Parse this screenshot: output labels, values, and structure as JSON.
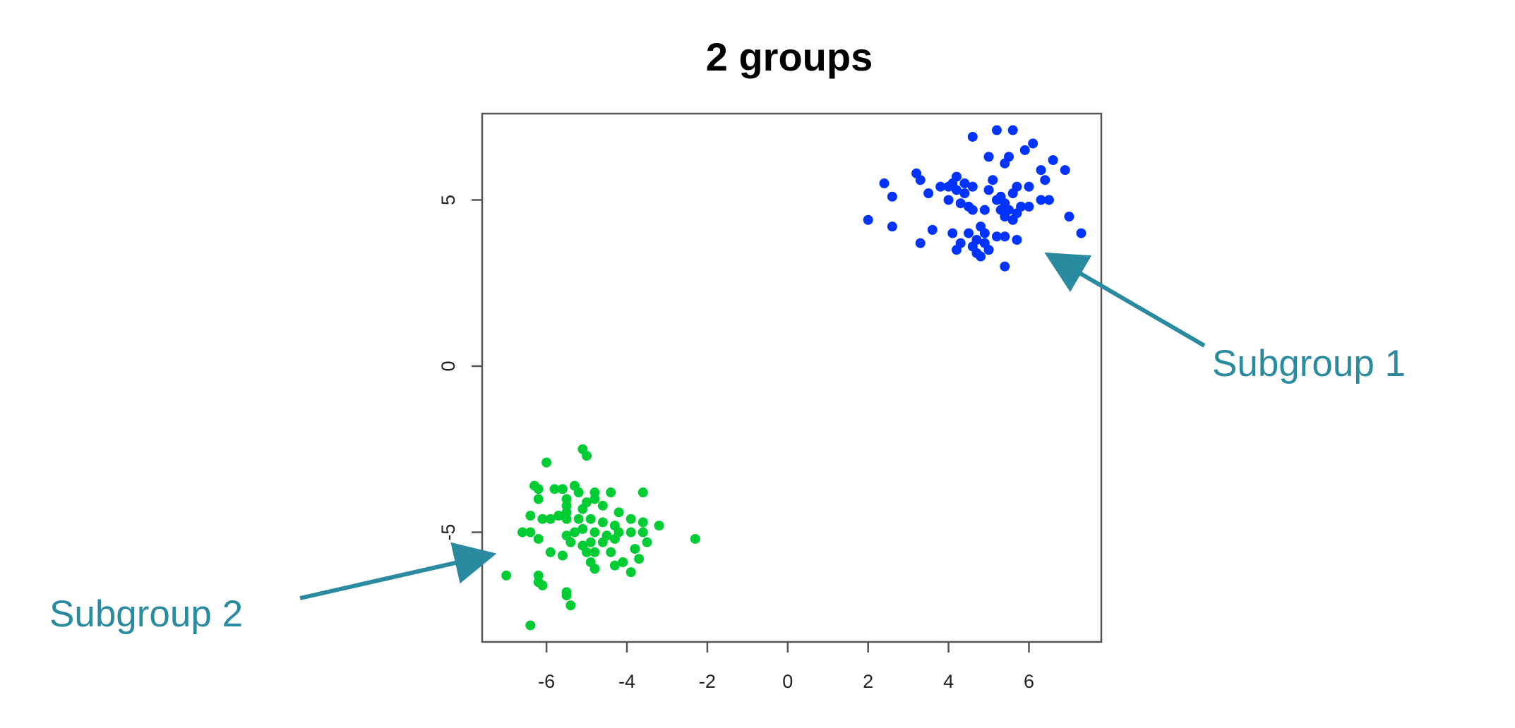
{
  "chart_data": {
    "type": "scatter",
    "title": "2 groups",
    "xlabel": "",
    "ylabel": "",
    "xlim": [
      -7.6,
      7.8
    ],
    "ylim": [
      -8.3,
      7.6
    ],
    "x_ticks": [
      -6,
      -4,
      -2,
      0,
      2,
      4,
      6
    ],
    "y_ticks": [
      -5,
      0,
      5
    ],
    "grid": false,
    "series": [
      {
        "color": "#0033ff",
        "points": [
          [
            5.2,
            7.1
          ],
          [
            5.6,
            7.1
          ],
          [
            4.6,
            6.9
          ],
          [
            6.1,
            6.7
          ],
          [
            5.9,
            6.5
          ],
          [
            5.0,
            6.3
          ],
          [
            5.5,
            6.3
          ],
          [
            5.4,
            6.1
          ],
          [
            6.6,
            6.2
          ],
          [
            6.3,
            5.9
          ],
          [
            6.9,
            5.9
          ],
          [
            3.2,
            5.8
          ],
          [
            3.3,
            5.6
          ],
          [
            5.1,
            5.6
          ],
          [
            4.2,
            5.7
          ],
          [
            4.1,
            5.5
          ],
          [
            4.4,
            5.5
          ],
          [
            4.2,
            5.3
          ],
          [
            4.0,
            5.4
          ],
          [
            3.8,
            5.4
          ],
          [
            2.4,
            5.5
          ],
          [
            2.6,
            5.1
          ],
          [
            3.5,
            5.2
          ],
          [
            4.6,
            5.4
          ],
          [
            4.4,
            5.2
          ],
          [
            5.7,
            5.4
          ],
          [
            5.0,
            5.3
          ],
          [
            6.0,
            5.4
          ],
          [
            6.4,
            5.6
          ],
          [
            4.3,
            4.9
          ],
          [
            4.5,
            4.8
          ],
          [
            4.6,
            4.7
          ],
          [
            4.9,
            4.7
          ],
          [
            5.2,
            5.0
          ],
          [
            5.3,
            5.1
          ],
          [
            5.4,
            4.9
          ],
          [
            5.6,
            5.2
          ],
          [
            5.8,
            4.8
          ],
          [
            6.3,
            5.0
          ],
          [
            6.5,
            5.0
          ],
          [
            5.5,
            4.7
          ],
          [
            5.7,
            4.6
          ],
          [
            5.4,
            4.5
          ],
          [
            6.0,
            4.8
          ],
          [
            5.6,
            4.4
          ],
          [
            7.0,
            4.5
          ],
          [
            2.0,
            4.4
          ],
          [
            2.6,
            4.2
          ],
          [
            3.6,
            4.1
          ],
          [
            4.1,
            4.0
          ],
          [
            4.8,
            4.2
          ],
          [
            4.9,
            4.0
          ],
          [
            5.2,
            3.9
          ],
          [
            5.4,
            3.9
          ],
          [
            4.7,
            3.8
          ],
          [
            4.6,
            3.6
          ],
          [
            4.3,
            3.7
          ],
          [
            4.2,
            3.5
          ],
          [
            3.3,
            3.7
          ],
          [
            4.9,
            3.7
          ],
          [
            5.0,
            3.5
          ],
          [
            5.7,
            3.8
          ],
          [
            4.7,
            3.4
          ],
          [
            4.8,
            3.3
          ],
          [
            5.4,
            3.0
          ],
          [
            7.3,
            4.0
          ],
          [
            4.5,
            4.0
          ],
          [
            5.3,
            4.7
          ],
          [
            4.0,
            5.0
          ]
        ]
      },
      {
        "color": "#00cc33",
        "points": [
          [
            -5.1,
            -2.5
          ],
          [
            -5.0,
            -2.7
          ],
          [
            -6.0,
            -2.9
          ],
          [
            -6.3,
            -3.6
          ],
          [
            -6.2,
            -3.7
          ],
          [
            -5.8,
            -3.7
          ],
          [
            -5.6,
            -3.7
          ],
          [
            -5.3,
            -3.6
          ],
          [
            -5.2,
            -3.8
          ],
          [
            -4.8,
            -3.8
          ],
          [
            -4.4,
            -3.8
          ],
          [
            -3.6,
            -3.8
          ],
          [
            -6.2,
            -4.0
          ],
          [
            -5.5,
            -4.0
          ],
          [
            -5.0,
            -4.1
          ],
          [
            -4.8,
            -4.0
          ],
          [
            -5.5,
            -4.2
          ],
          [
            -5.1,
            -4.3
          ],
          [
            -4.6,
            -4.2
          ],
          [
            -4.2,
            -4.4
          ],
          [
            -6.4,
            -4.5
          ],
          [
            -6.1,
            -4.6
          ],
          [
            -5.9,
            -4.6
          ],
          [
            -5.7,
            -4.5
          ],
          [
            -5.5,
            -4.6
          ],
          [
            -5.2,
            -4.6
          ],
          [
            -4.9,
            -4.6
          ],
          [
            -4.6,
            -4.7
          ],
          [
            -4.3,
            -4.8
          ],
          [
            -3.9,
            -4.6
          ],
          [
            -3.6,
            -4.7
          ],
          [
            -3.2,
            -4.8
          ],
          [
            -6.6,
            -5.0
          ],
          [
            -6.4,
            -5.0
          ],
          [
            -6.2,
            -5.2
          ],
          [
            -5.5,
            -5.1
          ],
          [
            -5.3,
            -5.0
          ],
          [
            -5.1,
            -4.9
          ],
          [
            -4.8,
            -5.0
          ],
          [
            -4.5,
            -5.1
          ],
          [
            -4.2,
            -5.0
          ],
          [
            -3.9,
            -5.0
          ],
          [
            -3.6,
            -5.0
          ],
          [
            -3.5,
            -5.3
          ],
          [
            -2.3,
            -5.2
          ],
          [
            -5.4,
            -5.3
          ],
          [
            -5.1,
            -5.4
          ],
          [
            -4.9,
            -5.3
          ],
          [
            -4.6,
            -5.3
          ],
          [
            -4.3,
            -5.2
          ],
          [
            -3.8,
            -5.5
          ],
          [
            -5.9,
            -5.6
          ],
          [
            -5.6,
            -5.7
          ],
          [
            -5.0,
            -5.6
          ],
          [
            -4.8,
            -5.6
          ],
          [
            -4.4,
            -5.6
          ],
          [
            -3.7,
            -5.8
          ],
          [
            -4.1,
            -5.9
          ],
          [
            -4.3,
            -6.0
          ],
          [
            -4.8,
            -6.1
          ],
          [
            -3.9,
            -6.2
          ],
          [
            -4.9,
            -5.9
          ],
          [
            -7.0,
            -6.3
          ],
          [
            -6.2,
            -6.3
          ],
          [
            -6.2,
            -6.5
          ],
          [
            -6.1,
            -6.6
          ],
          [
            -5.5,
            -6.8
          ],
          [
            -5.5,
            -6.9
          ],
          [
            -5.4,
            -7.2
          ],
          [
            -6.4,
            -7.8
          ],
          [
            -5.5,
            -4.4
          ]
        ]
      }
    ],
    "annotations": [
      {
        "text": "Subgroup 1",
        "color": "#2a8aa0"
      },
      {
        "text": "Subgroup 2",
        "color": "#2a8aa0"
      }
    ]
  }
}
